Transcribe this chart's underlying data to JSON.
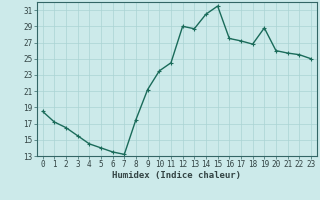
{
  "x": [
    0,
    1,
    2,
    3,
    4,
    5,
    6,
    7,
    8,
    9,
    10,
    11,
    12,
    13,
    14,
    15,
    16,
    17,
    18,
    19,
    20,
    21,
    22,
    23
  ],
  "y": [
    18.5,
    17.2,
    16.5,
    15.5,
    14.5,
    14.0,
    13.5,
    13.2,
    17.5,
    21.2,
    23.5,
    24.5,
    29.0,
    28.7,
    30.5,
    31.5,
    27.5,
    27.2,
    26.8,
    28.8,
    26.0,
    25.7,
    25.5,
    25.0
  ],
  "line_color": "#1a6b5a",
  "marker": "+",
  "marker_size": 3,
  "bg_color": "#cceaea",
  "grid_color": "#aad4d4",
  "xlabel": "Humidex (Indice chaleur)",
  "ylim": [
    13,
    32
  ],
  "xlim": [
    -0.5,
    23.5
  ],
  "yticks": [
    13,
    15,
    17,
    19,
    21,
    23,
    25,
    27,
    29,
    31
  ],
  "xticks": [
    0,
    1,
    2,
    3,
    4,
    5,
    6,
    7,
    8,
    9,
    10,
    11,
    12,
    13,
    14,
    15,
    16,
    17,
    18,
    19,
    20,
    21,
    22,
    23
  ],
  "tick_fontsize": 5.5,
  "label_fontsize": 6.5,
  "line_width": 1.0
}
